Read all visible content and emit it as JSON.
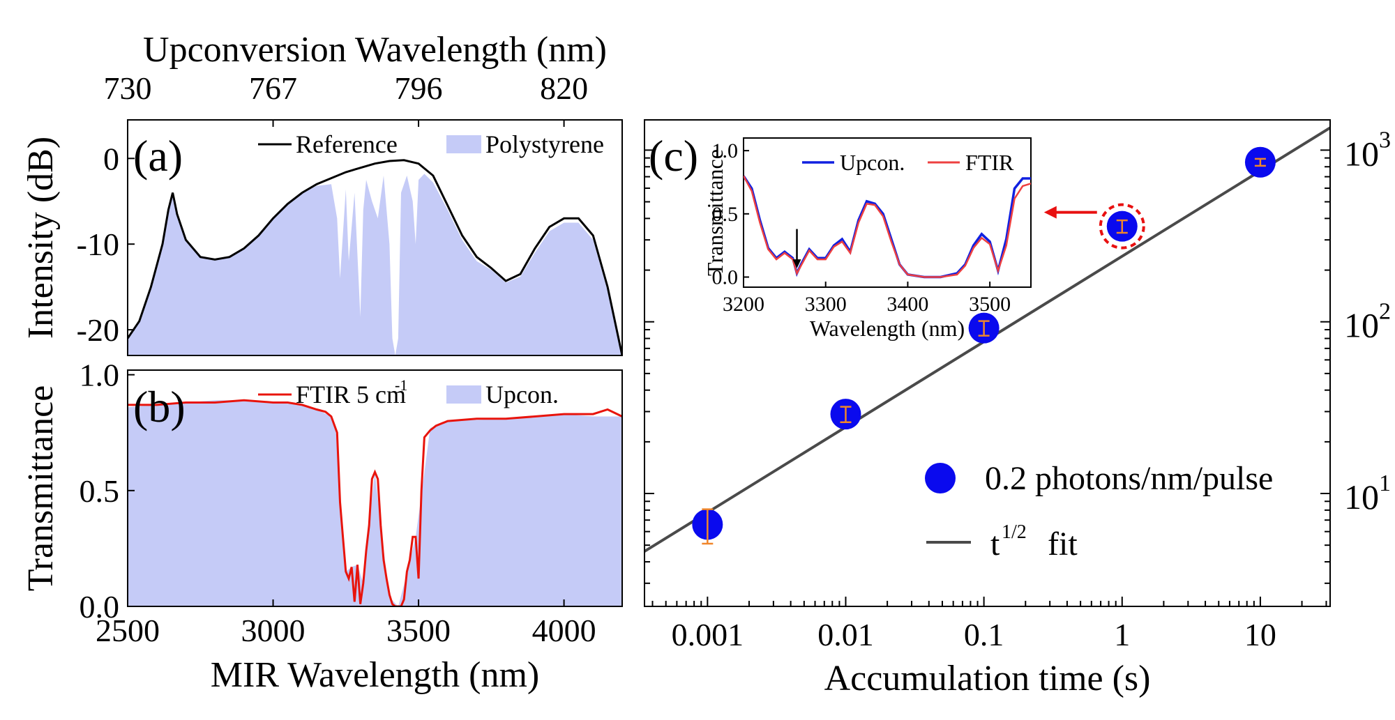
{
  "chart_data": [
    {
      "panel": "(a)",
      "type": "area",
      "top_xlabel": "Upconversion Wavelength (nm)",
      "top_ticks": [
        "730",
        "767",
        "796",
        "820"
      ],
      "top_tick_positions_nm": [
        2500,
        3000,
        3500,
        4000
      ],
      "ylabel": "Intensity (dB)",
      "xlim": [
        2500,
        4200
      ],
      "ylim": [
        -23,
        4.5
      ],
      "yticks": [
        0,
        -10,
        -20
      ],
      "ytick_labels": [
        "0",
        "-10",
        "-20"
      ],
      "legend": [
        "Reference",
        "Polystyrene"
      ],
      "colors": {
        "Reference": "#000000",
        "Polystyrene": "#c5cbf7"
      },
      "series": [
        {
          "name": "Reference",
          "x": [
            2500,
            2540,
            2580,
            2620,
            2640,
            2655,
            2670,
            2700,
            2750,
            2800,
            2850,
            2900,
            2950,
            3000,
            3050,
            3100,
            3150,
            3200,
            3250,
            3300,
            3350,
            3400,
            3450,
            3500,
            3550,
            3600,
            3650,
            3700,
            3750,
            3800,
            3850,
            3900,
            3950,
            4000,
            4050,
            4100,
            4150,
            4200
          ],
          "y": [
            -21,
            -19,
            -15,
            -10,
            -6,
            -4,
            -6.5,
            -9.5,
            -11.5,
            -11.8,
            -11.5,
            -10.5,
            -9,
            -7,
            -5.3,
            -4,
            -3,
            -2.3,
            -1.6,
            -1.1,
            -0.6,
            -0.3,
            -0.2,
            -0.6,
            -2,
            -5.5,
            -9,
            -11.5,
            -12.8,
            -14.3,
            -13.5,
            -10.5,
            -8,
            -7,
            -7,
            -9,
            -15,
            -23
          ]
        },
        {
          "name": "Polystyrene",
          "x": [
            2500,
            2540,
            2580,
            2620,
            2640,
            2655,
            2670,
            2700,
            2750,
            2800,
            2850,
            2900,
            2950,
            3000,
            3050,
            3100,
            3150,
            3200,
            3220,
            3230,
            3250,
            3260,
            3280,
            3300,
            3310,
            3320,
            3340,
            3360,
            3380,
            3400,
            3410,
            3420,
            3430,
            3440,
            3460,
            3480,
            3490,
            3500,
            3520,
            3550,
            3600,
            3650,
            3700,
            3750,
            3800,
            3850,
            3900,
            3950,
            4000,
            4050,
            4100,
            4150,
            4200
          ],
          "y": [
            -21,
            -19,
            -15,
            -10,
            -6,
            -4,
            -6.5,
            -9.5,
            -11.5,
            -11.8,
            -11.5,
            -10.5,
            -9,
            -7,
            -5.3,
            -4,
            -3.2,
            -3,
            -7,
            -14,
            -3.6,
            -12,
            -4,
            -18.5,
            -6,
            -2.5,
            -5,
            -7,
            -2,
            -10,
            -21,
            -23,
            -21,
            -4,
            -2,
            -5,
            -10,
            -2.5,
            -1.8,
            -2.8,
            -6,
            -9.5,
            -12,
            -13,
            -14.5,
            -13.8,
            -11,
            -8.5,
            -7.5,
            -7.5,
            -9.5,
            -15.5,
            -23
          ]
        }
      ]
    },
    {
      "panel": "(b)",
      "type": "area",
      "xlabel": "MIR Wavelength (nm)",
      "ylabel": "Transmittance",
      "xlim": [
        2500,
        4200
      ],
      "ylim": [
        0,
        1.02
      ],
      "xticks": [
        2500,
        3000,
        3500,
        4000
      ],
      "xtick_labels": [
        "2500",
        "3000",
        "3500",
        "4000"
      ],
      "yticks": [
        0,
        0.5,
        1
      ],
      "ytick_labels": [
        "0.0",
        "0.5",
        "1.0"
      ],
      "legend": [
        "FTIR 5 cm",
        "-1",
        "Upcon."
      ],
      "colors": {
        "FTIR": "#e8140c",
        "Upcon.": "#c5cbf7"
      },
      "series": [
        {
          "name": "FTIR 5 cm-1",
          "x": [
            2500,
            2600,
            2700,
            2800,
            2900,
            3000,
            3050,
            3100,
            3150,
            3180,
            3200,
            3220,
            3230,
            3240,
            3250,
            3260,
            3270,
            3280,
            3290,
            3300,
            3310,
            3320,
            3330,
            3340,
            3350,
            3360,
            3370,
            3380,
            3390,
            3400,
            3410,
            3420,
            3430,
            3440,
            3450,
            3460,
            3470,
            3480,
            3490,
            3500,
            3510,
            3520,
            3540,
            3560,
            3600,
            3700,
            3800,
            3900,
            4000,
            4100,
            4150,
            4200
          ],
          "y": [
            0.87,
            0.87,
            0.88,
            0.88,
            0.89,
            0.88,
            0.88,
            0.87,
            0.85,
            0.84,
            0.82,
            0.75,
            0.45,
            0.3,
            0.15,
            0.12,
            0.17,
            0.02,
            0.18,
            0.01,
            0.1,
            0.24,
            0.35,
            0.55,
            0.58,
            0.55,
            0.35,
            0.2,
            0.12,
            0.05,
            0.01,
            0.0,
            0.0,
            0.0,
            0.03,
            0.15,
            0.2,
            0.3,
            0.3,
            0.12,
            0.5,
            0.73,
            0.76,
            0.78,
            0.8,
            0.81,
            0.81,
            0.82,
            0.83,
            0.83,
            0.85,
            0.82
          ]
        },
        {
          "name": "Upcon.",
          "x": [
            2500,
            2600,
            2700,
            2800,
            2900,
            3000,
            3100,
            3150,
            3200,
            3220,
            3230,
            3250,
            3270,
            3290,
            3310,
            3330,
            3350,
            3370,
            3400,
            3430,
            3460,
            3490,
            3510,
            3540,
            3600,
            3800,
            4000,
            4100,
            4200
          ],
          "y": [
            0.86,
            0.87,
            0.88,
            0.89,
            0.89,
            0.88,
            0.87,
            0.85,
            0.82,
            0.73,
            0.45,
            0.15,
            0.17,
            0.18,
            0.1,
            0.36,
            0.58,
            0.35,
            0.04,
            0.0,
            0.14,
            0.3,
            0.48,
            0.77,
            0.8,
            0.81,
            0.83,
            0.82,
            0.82
          ]
        }
      ]
    },
    {
      "panel": "(c)",
      "type": "scatter",
      "xlabel": "Accumulation time (s)",
      "xscale": "log",
      "yscale": "log",
      "xlim": [
        0.00035,
        32
      ],
      "ylim": [
        2.2,
        1500
      ],
      "xticks": [
        0.001,
        0.01,
        0.1,
        1,
        10
      ],
      "xtick_labels": [
        "0.001",
        "0.01",
        "0.1",
        "1",
        "10"
      ],
      "yticks": [
        10,
        100,
        1000
      ],
      "ytick_labels": [
        "10",
        "1",
        "10",
        "2",
        "10",
        "3"
      ],
      "yaxis_side": "right",
      "legend": [
        "0.2 photons/nm/pulse",
        "t",
        "1/2",
        "fit"
      ],
      "colors": {
        "points": "#0a0aee",
        "fit": "#4a4a4a",
        "errorbar": "#f0862a",
        "highlight": "#e81010"
      },
      "series": [
        {
          "name": "0.2 photons/nm/pulse",
          "x": [
            0.001,
            0.01,
            0.1,
            1,
            10
          ],
          "y": [
            6.6,
            29,
            92,
            360,
            850
          ],
          "err_low": [
            1.5,
            3,
            9,
            30,
            40
          ],
          "err_high": [
            1.5,
            3,
            9,
            30,
            40
          ]
        },
        {
          "name": "t^1/2 fit",
          "x": [
            0.00035,
            32
          ],
          "y": [
            4.6,
            1350
          ]
        }
      ],
      "inset": {
        "type": "line",
        "xlabel": "Wavelength (nm)",
        "ylabel": "Transmittance",
        "xlim": [
          3200,
          3550
        ],
        "ylim": [
          -0.08,
          1.1
        ],
        "xticks": [
          3200,
          3300,
          3400,
          3500
        ],
        "xtick_labels": [
          "3200",
          "3300",
          "3400",
          "3500"
        ],
        "yticks": [
          0,
          0.5,
          1
        ],
        "ytick_labels": [
          "0.0",
          "0.5",
          "1.0"
        ],
        "legend": [
          "Upcon.",
          "FTIR"
        ],
        "colors": {
          "Upcon.": "#1020e0",
          "FTIR": "#ee4040"
        },
        "series": [
          {
            "name": "Upcon.",
            "x": [
              3200,
              3210,
              3220,
              3230,
              3240,
              3250,
              3260,
              3265,
              3270,
              3280,
              3290,
              3300,
              3310,
              3320,
              3330,
              3340,
              3350,
              3360,
              3370,
              3380,
              3390,
              3400,
              3420,
              3440,
              3460,
              3470,
              3480,
              3490,
              3500,
              3510,
              3520,
              3530,
              3540,
              3550
            ],
            "y": [
              0.8,
              0.7,
              0.45,
              0.23,
              0.15,
              0.2,
              0.15,
              0.03,
              0.1,
              0.22,
              0.15,
              0.15,
              0.25,
              0.3,
              0.2,
              0.45,
              0.6,
              0.58,
              0.5,
              0.3,
              0.1,
              0.02,
              0.0,
              0.0,
              0.03,
              0.1,
              0.25,
              0.34,
              0.28,
              0.05,
              0.3,
              0.7,
              0.78,
              0.78
            ]
          },
          {
            "name": "FTIR",
            "x": [
              3200,
              3210,
              3220,
              3230,
              3240,
              3250,
              3260,
              3265,
              3270,
              3280,
              3290,
              3300,
              3310,
              3320,
              3330,
              3340,
              3350,
              3360,
              3370,
              3380,
              3390,
              3400,
              3420,
              3440,
              3460,
              3470,
              3480,
              3490,
              3500,
              3510,
              3520,
              3530,
              3540,
              3550
            ],
            "y": [
              0.8,
              0.68,
              0.43,
              0.22,
              0.14,
              0.19,
              0.14,
              0.03,
              0.09,
              0.21,
              0.14,
              0.14,
              0.24,
              0.28,
              0.19,
              0.43,
              0.58,
              0.57,
              0.48,
              0.28,
              0.1,
              0.02,
              0.0,
              0.0,
              0.02,
              0.09,
              0.23,
              0.31,
              0.26,
              0.05,
              0.25,
              0.62,
              0.72,
              0.74
            ]
          }
        ],
        "annotation_arrow_x": 3265
      }
    }
  ]
}
